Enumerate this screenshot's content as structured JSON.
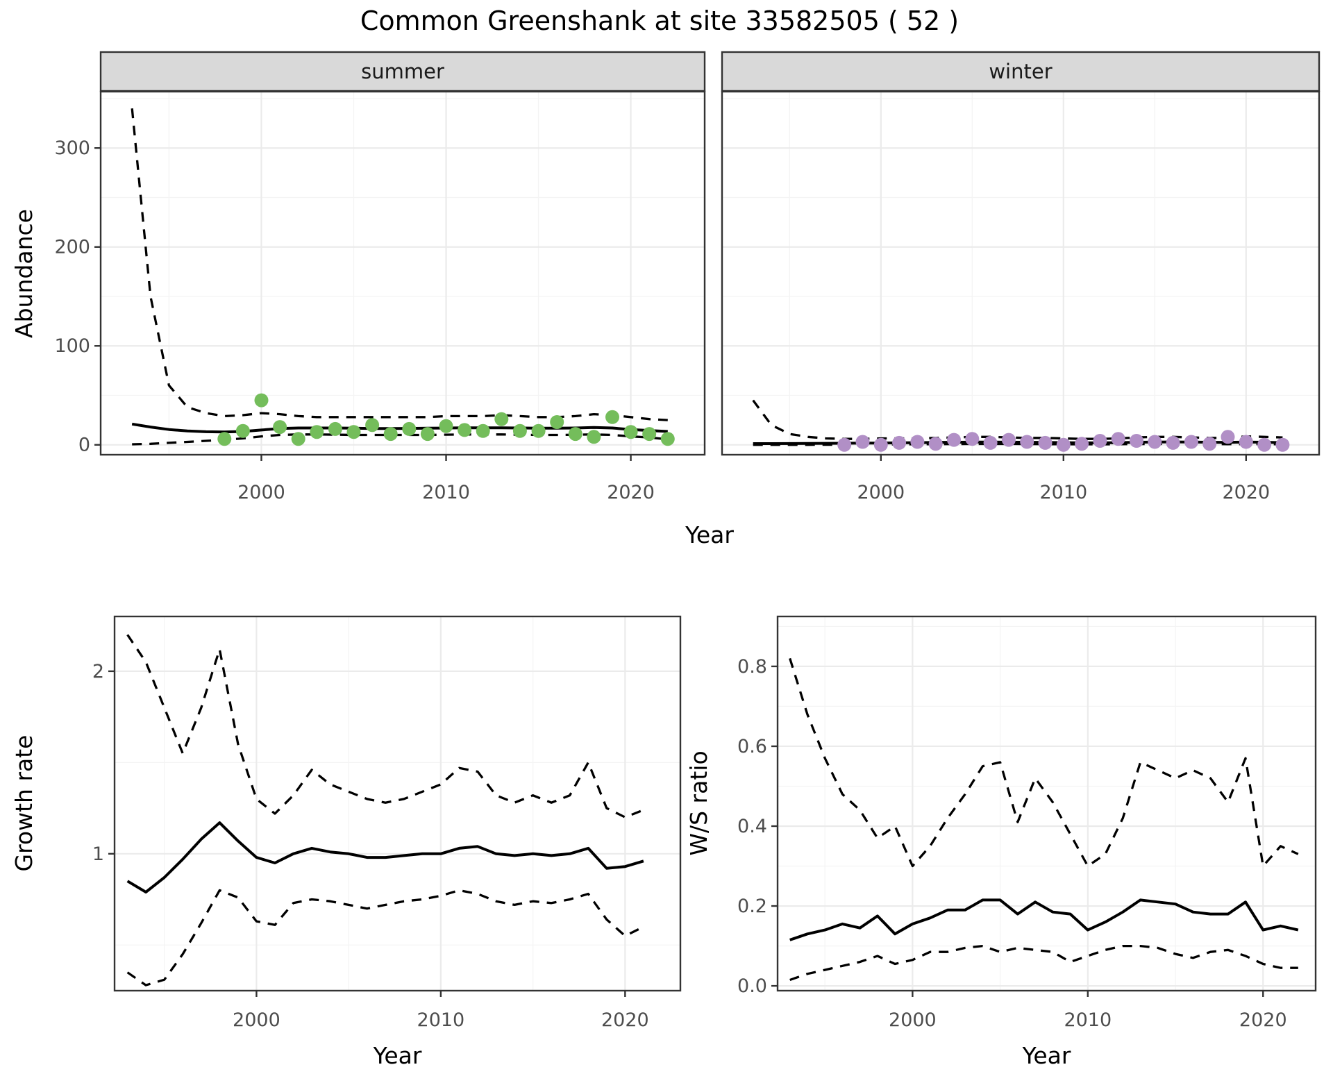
{
  "title": "Common Greenshank at site 33582505 ( 52 )",
  "colors": {
    "summer_point": "#74BD5B",
    "winter_point": "#B18FC6",
    "strip_fill": "#D9D9D9",
    "panel_border": "#333333",
    "grid_major": "#EBEBEB",
    "grid_minor": "#F4F4F4",
    "tick_label": "#4D4D4D",
    "line": "#000000",
    "background": "#FFFFFF"
  },
  "chart_data": [
    {
      "id": "abundance-summer",
      "type": "line",
      "facet_label": "summer",
      "xlabel": "Year",
      "ylabel": "Abundance",
      "xlim": [
        1991.3,
        2024.0
      ],
      "ylim": [
        -10,
        357
      ],
      "xticks": [
        2000,
        2010,
        2020
      ],
      "xtick_labels": [
        "2000",
        "2010",
        "2020"
      ],
      "xminor": [
        1995,
        2005,
        2015
      ],
      "yticks": [
        0,
        100,
        200,
        300
      ],
      "ytick_labels": [
        "0",
        "100",
        "200",
        "300"
      ],
      "yminor": [
        50,
        150,
        250,
        350
      ],
      "years": [
        1993,
        1994,
        1995,
        1996,
        1997,
        1998,
        1999,
        2000,
        2001,
        2002,
        2003,
        2004,
        2005,
        2006,
        2007,
        2008,
        2009,
        2010,
        2011,
        2012,
        2013,
        2014,
        2015,
        2016,
        2017,
        2018,
        2019,
        2020,
        2021,
        2022
      ],
      "series": [
        {
          "name": "upper-ci",
          "style": "dashed",
          "values": [
            340,
            150,
            60,
            38,
            32,
            29,
            30,
            32,
            31,
            29,
            28,
            28,
            28,
            28,
            28,
            28,
            28,
            29,
            29,
            29,
            30,
            29,
            28,
            28,
            29,
            31,
            30,
            28,
            26,
            25
          ]
        },
        {
          "name": "fit",
          "style": "solid",
          "values": [
            21,
            18,
            15.5,
            14,
            13.2,
            13,
            13.5,
            15,
            16.5,
            17,
            17,
            17,
            16.8,
            16.5,
            16.5,
            16.6,
            16.8,
            17,
            17.2,
            17.2,
            17.2,
            17,
            16.8,
            16.8,
            17,
            17.5,
            17,
            15.5,
            14.5,
            13.5
          ]
        },
        {
          "name": "lower-ci",
          "style": "dashed",
          "values": [
            0.5,
            1,
            2,
            3,
            4,
            5,
            6.5,
            8.5,
            10,
            10.5,
            10.5,
            10.3,
            10,
            10,
            10,
            10,
            10,
            10.3,
            10.5,
            10.5,
            10.5,
            10.2,
            10,
            10,
            10.2,
            10.5,
            10,
            8.5,
            7.5,
            5.5
          ]
        }
      ],
      "points": {
        "name": "observed-summer-counts",
        "color_key": "summer_point",
        "years": [
          1998,
          1999,
          2000,
          2001,
          2002,
          2003,
          2004,
          2005,
          2006,
          2007,
          2008,
          2009,
          2010,
          2011,
          2012,
          2013,
          2014,
          2015,
          2016,
          2017,
          2018,
          2019,
          2020,
          2021,
          2022
        ],
        "values": [
          6,
          14,
          45,
          18,
          6,
          13,
          16,
          13,
          20,
          11,
          16,
          11,
          19,
          15,
          14,
          26,
          14,
          14,
          23,
          11,
          8,
          28,
          13,
          11,
          6
        ]
      }
    },
    {
      "id": "abundance-winter",
      "type": "line",
      "facet_label": "winter",
      "xlabel": "Year",
      "ylabel": "Abundance",
      "xlim": [
        1991.3,
        2024.0
      ],
      "ylim": [
        -10,
        357
      ],
      "xticks": [
        2000,
        2010,
        2020
      ],
      "xtick_labels": [
        "2000",
        "2010",
        "2020"
      ],
      "xminor": [
        1995,
        2005,
        2015
      ],
      "yticks": [
        0,
        100,
        200,
        300
      ],
      "ytick_labels": [
        "0",
        "100",
        "200",
        "300"
      ],
      "yminor": [
        50,
        150,
        250,
        350
      ],
      "years": [
        1993,
        1994,
        1995,
        1996,
        1997,
        1998,
        1999,
        2000,
        2001,
        2002,
        2003,
        2004,
        2005,
        2006,
        2007,
        2008,
        2009,
        2010,
        2011,
        2012,
        2013,
        2014,
        2015,
        2016,
        2017,
        2018,
        2019,
        2020,
        2021,
        2022
      ],
      "series": [
        {
          "name": "upper-ci",
          "style": "dashed",
          "values": [
            45,
            20,
            11,
            8,
            6.5,
            6,
            6,
            6.5,
            6.5,
            6.5,
            7,
            7.5,
            8,
            8,
            7.5,
            7,
            7,
            6.5,
            6,
            6,
            6.5,
            7.5,
            8,
            8,
            7.5,
            7,
            7,
            8.5,
            8,
            7.5
          ]
        },
        {
          "name": "fit",
          "style": "solid",
          "values": [
            1.2,
            1.2,
            1.3,
            1.4,
            1.5,
            1.6,
            1.7,
            1.8,
            2,
            2.2,
            2.4,
            2.6,
            2.8,
            2.8,
            2.7,
            2.6,
            2.4,
            2.2,
            2,
            2,
            2.2,
            2.6,
            2.8,
            2.9,
            2.8,
            2.6,
            2.5,
            2.8,
            2.6,
            2.2
          ]
        },
        {
          "name": "lower-ci",
          "style": "dashed",
          "values": [
            0,
            0,
            0,
            0,
            0.1,
            0.2,
            0.3,
            0.4,
            0.5,
            0.6,
            0.7,
            0.8,
            0.9,
            0.9,
            0.85,
            0.8,
            0.7,
            0.6,
            0.5,
            0.5,
            0.6,
            0.8,
            0.9,
            1,
            0.9,
            0.8,
            0.7,
            0.8,
            0.7,
            0.5
          ]
        }
      ],
      "points": {
        "name": "observed-winter-counts",
        "color_key": "winter_point",
        "years": [
          1998,
          1999,
          2000,
          2001,
          2002,
          2003,
          2004,
          2005,
          2006,
          2007,
          2008,
          2009,
          2010,
          2011,
          2012,
          2013,
          2014,
          2015,
          2016,
          2017,
          2018,
          2019,
          2020,
          2021,
          2022
        ],
        "values": [
          0,
          3,
          0,
          2,
          3,
          1,
          5,
          6,
          2,
          5,
          3,
          2,
          0,
          1,
          4,
          6,
          4,
          3,
          2,
          3,
          1,
          8,
          3,
          0,
          0
        ]
      }
    },
    {
      "id": "growth-rate",
      "type": "line",
      "facet_label": "",
      "xlabel": "Year",
      "ylabel": "Growth rate",
      "xlim": [
        1992.3,
        2023.0
      ],
      "ylim": [
        0.25,
        2.3
      ],
      "xticks": [
        2000,
        2010,
        2020
      ],
      "xtick_labels": [
        "2000",
        "2010",
        "2020"
      ],
      "xminor": [
        1995,
        2005,
        2015
      ],
      "yticks": [
        1,
        2
      ],
      "ytick_labels": [
        "1",
        "2"
      ],
      "yminor": [
        0.5,
        1.5
      ],
      "years": [
        1993,
        1994,
        1995,
        1996,
        1997,
        1998,
        1999,
        2000,
        2001,
        2002,
        2003,
        2004,
        2005,
        2006,
        2007,
        2008,
        2009,
        2010,
        2011,
        2012,
        2013,
        2014,
        2015,
        2016,
        2017,
        2018,
        2019,
        2020,
        2021
      ],
      "series": [
        {
          "name": "upper-ci",
          "style": "dashed",
          "values": [
            2.2,
            2.05,
            1.8,
            1.55,
            1.8,
            2.12,
            1.6,
            1.3,
            1.22,
            1.32,
            1.46,
            1.38,
            1.34,
            1.3,
            1.28,
            1.3,
            1.34,
            1.38,
            1.47,
            1.45,
            1.32,
            1.28,
            1.32,
            1.28,
            1.32,
            1.5,
            1.25,
            1.2,
            1.24
          ]
        },
        {
          "name": "fit",
          "style": "solid",
          "values": [
            0.85,
            0.79,
            0.87,
            0.97,
            1.08,
            1.17,
            1.07,
            0.98,
            0.95,
            1.0,
            1.03,
            1.01,
            1.0,
            0.98,
            0.98,
            0.99,
            1.0,
            1.0,
            1.03,
            1.04,
            1.0,
            0.99,
            1.0,
            0.99,
            1.0,
            1.03,
            0.92,
            0.93,
            0.96
          ]
        },
        {
          "name": "lower-ci",
          "style": "dashed",
          "values": [
            0.35,
            0.28,
            0.31,
            0.45,
            0.62,
            0.8,
            0.76,
            0.63,
            0.61,
            0.73,
            0.75,
            0.74,
            0.72,
            0.7,
            0.72,
            0.74,
            0.75,
            0.77,
            0.8,
            0.78,
            0.74,
            0.72,
            0.74,
            0.73,
            0.75,
            0.78,
            0.64,
            0.55,
            0.6
          ]
        }
      ],
      "points": null
    },
    {
      "id": "ws-ratio",
      "type": "line",
      "facet_label": "",
      "xlabel": "Year",
      "ylabel": "W/S ratio",
      "xlim": [
        1992.3,
        2023.0
      ],
      "ylim": [
        -0.012,
        0.925
      ],
      "xticks": [
        2000,
        2010,
        2020
      ],
      "xtick_labels": [
        "2000",
        "2010",
        "2020"
      ],
      "xminor": [
        1995,
        2005,
        2015
      ],
      "yticks": [
        0,
        0.2,
        0.4,
        0.6,
        0.8
      ],
      "ytick_labels": [
        "0.0",
        "0.2",
        "0.4",
        "0.6",
        "0.8"
      ],
      "yminor": [
        0.1,
        0.3,
        0.5,
        0.7,
        0.9
      ],
      "years": [
        1993,
        1994,
        1995,
        1996,
        1997,
        1998,
        1999,
        2000,
        2001,
        2002,
        2003,
        2004,
        2005,
        2006,
        2007,
        2008,
        2009,
        2010,
        2011,
        2012,
        2013,
        2014,
        2015,
        2016,
        2017,
        2018,
        2019,
        2020,
        2021,
        2022
      ],
      "series": [
        {
          "name": "upper-ci",
          "style": "dashed",
          "values": [
            0.82,
            0.68,
            0.57,
            0.48,
            0.44,
            0.37,
            0.4,
            0.3,
            0.35,
            0.42,
            0.48,
            0.55,
            0.56,
            0.41,
            0.52,
            0.46,
            0.38,
            0.3,
            0.33,
            0.42,
            0.56,
            0.54,
            0.52,
            0.54,
            0.52,
            0.46,
            0.57,
            0.3,
            0.35,
            0.33
          ]
        },
        {
          "name": "fit",
          "style": "solid",
          "values": [
            0.115,
            0.13,
            0.14,
            0.155,
            0.145,
            0.175,
            0.13,
            0.155,
            0.17,
            0.19,
            0.19,
            0.215,
            0.215,
            0.18,
            0.21,
            0.185,
            0.18,
            0.14,
            0.16,
            0.185,
            0.215,
            0.21,
            0.205,
            0.185,
            0.18,
            0.18,
            0.21,
            0.14,
            0.15,
            0.14
          ]
        },
        {
          "name": "lower-ci",
          "style": "dashed",
          "values": [
            0.015,
            0.03,
            0.04,
            0.05,
            0.06,
            0.075,
            0.055,
            0.065,
            0.085,
            0.085,
            0.095,
            0.1,
            0.085,
            0.095,
            0.09,
            0.085,
            0.06,
            0.075,
            0.09,
            0.1,
            0.1,
            0.095,
            0.08,
            0.07,
            0.085,
            0.09,
            0.075,
            0.055,
            0.045,
            0.045
          ]
        }
      ],
      "points": null
    }
  ]
}
